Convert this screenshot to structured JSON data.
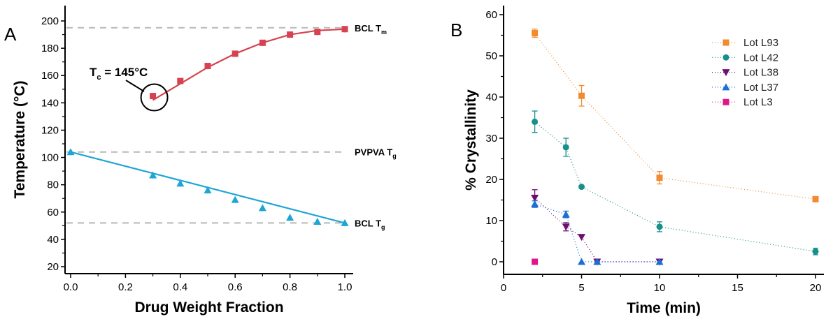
{
  "chart_data": [
    {
      "panel_label": "A",
      "type": "line",
      "xlabel": "Drug Weight Fraction",
      "ylabel": "Temperature (°C)",
      "xlim": [
        -0.02,
        1.05
      ],
      "ylim": [
        20,
        210
      ],
      "xticks": [
        "0.0",
        "0.2",
        "0.4",
        "0.6",
        "0.8",
        "1.0"
      ],
      "yticks": [
        "20",
        "40",
        "60",
        "80",
        "100",
        "120",
        "140",
        "160",
        "180",
        "200"
      ],
      "grid": false,
      "series": [
        {
          "marker": "square",
          "color": "#d6424f",
          "x": [
            0.3,
            0.4,
            0.5,
            0.6,
            0.7,
            0.8,
            0.9,
            1.0
          ],
          "y": [
            145,
            156,
            167,
            176,
            184,
            190,
            192,
            194
          ],
          "fit_x": [
            0.3,
            0.4,
            0.5,
            0.6,
            0.7,
            0.8,
            0.9,
            1.0
          ],
          "fit_y": [
            142,
            154,
            166,
            176,
            184,
            190,
            193,
            194
          ]
        },
        {
          "marker": "triangle",
          "color": "#1ea5d6",
          "x": [
            0.0,
            0.3,
            0.4,
            0.5,
            0.6,
            0.7,
            0.8,
            0.9,
            1.0
          ],
          "y": [
            104,
            87,
            81,
            76,
            69,
            63,
            56,
            53,
            52
          ],
          "fit_x": [
            0.0,
            1.0
          ],
          "fit_y": [
            104,
            52
          ]
        }
      ],
      "reference_lines": [
        {
          "y": 195,
          "label": "BCL T",
          "sub": "m"
        },
        {
          "y": 104,
          "label": "PVPVA T",
          "sub": "g"
        },
        {
          "y": 52,
          "label": "BCL T",
          "sub": "g"
        }
      ],
      "annotation": {
        "text": "T",
        "sub": "c",
        "rest": " = 145°C",
        "x": 0.3,
        "y": 145
      }
    },
    {
      "panel_label": "B",
      "type": "scatter",
      "xlabel": "Time (min)",
      "ylabel": "% Crystallinity",
      "xlim": [
        0,
        20.5
      ],
      "ylim": [
        -2,
        60
      ],
      "xticks": [
        "0",
        "5",
        "10",
        "15",
        "20"
      ],
      "yticks": [
        "0",
        "10",
        "20",
        "30",
        "40",
        "50",
        "60"
      ],
      "grid": false,
      "legend_position": "top-right",
      "series": [
        {
          "name": "Lot L93",
          "marker": "square",
          "color": "#f28a30",
          "x": [
            2,
            5,
            10,
            20
          ],
          "y": [
            55.5,
            40.3,
            20.4,
            15.2
          ],
          "err": [
            1,
            2.5,
            1.5,
            0
          ]
        },
        {
          "name": "Lot L42",
          "marker": "circle",
          "color": "#17908c",
          "x": [
            2,
            4,
            5,
            10,
            20
          ],
          "y": [
            34,
            27.8,
            18.2,
            8.5,
            2.5
          ],
          "err": [
            2.6,
            2.2,
            0,
            1.2,
            0.8
          ]
        },
        {
          "name": "Lot L38",
          "marker": "triangle-down",
          "color": "#6e0f70",
          "x": [
            2,
            4,
            5,
            6,
            10
          ],
          "y": [
            15.5,
            8.5,
            6,
            0,
            0
          ],
          "err": [
            2,
            1,
            0,
            0,
            0
          ]
        },
        {
          "name": "Lot L37",
          "marker": "triangle",
          "color": "#1c6fd4",
          "x": [
            2,
            4,
            5,
            6,
            10
          ],
          "y": [
            14,
            11.5,
            0,
            0,
            0
          ],
          "err": [
            0.8,
            0.8,
            0,
            0,
            0
          ]
        },
        {
          "name": "Lot L3",
          "marker": "square",
          "color": "#e0178a",
          "x": [
            2
          ],
          "y": [
            0
          ],
          "err": [
            0
          ]
        }
      ]
    }
  ]
}
